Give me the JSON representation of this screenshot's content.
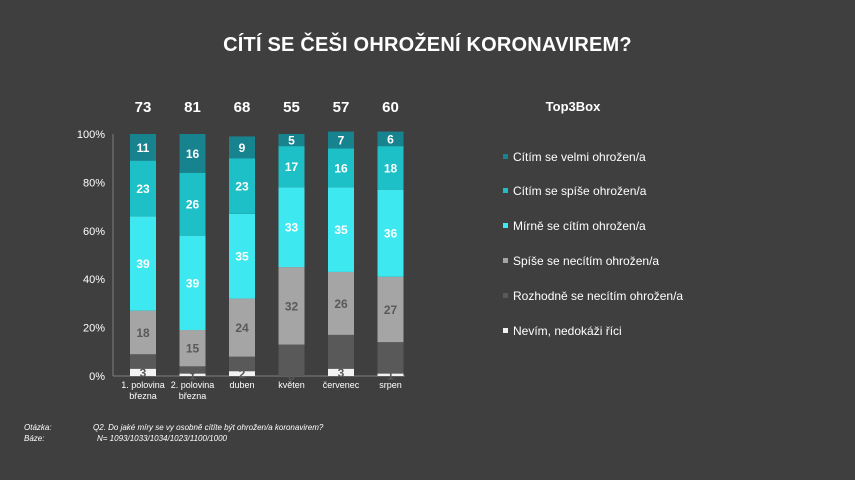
{
  "title": "CÍTÍ SE ČEŠI OHROŽENÍ KORONAVIREM?",
  "legend_title": "Top3Box",
  "colors": {
    "background": "#3f3f3f",
    "velmi": "#17838e",
    "spise": "#1cc0c6",
    "mirne": "#3ee8f0",
    "spise_ne": "#a5a5a5",
    "rozhodne_ne": "#595959",
    "nevim": "#f2f2f2"
  },
  "chart_data": {
    "type": "bar",
    "stacked": true,
    "categories": [
      "1. polovina března",
      "2. polovina března",
      "duben",
      "květen",
      "červenec",
      "srpen"
    ],
    "category_lines": [
      [
        "1. polovina",
        "března"
      ],
      [
        "2. polovina",
        "března"
      ],
      [
        "duben"
      ],
      [
        "květen"
      ],
      [
        "červenec"
      ],
      [
        "srpen"
      ]
    ],
    "top3box": [
      73,
      81,
      68,
      55,
      57,
      60
    ],
    "ylim": [
      0,
      100
    ],
    "yticks": [
      "0%",
      "20%",
      "40%",
      "60%",
      "80%",
      "100%"
    ],
    "series": [
      {
        "name": "Nevím, nedokáži říci",
        "color_key": "nevim",
        "label_color": "#595959",
        "values": [
          3,
          1,
          2,
          0,
          3,
          1
        ]
      },
      {
        "name": "Rozhodně se necítím ohrožen/a",
        "color_key": "rozhodne_ne",
        "label_color": "#595959",
        "values": [
          6,
          3,
          6,
          13,
          14,
          13
        ]
      },
      {
        "name": "Spíše se necítím ohrožen/a",
        "color_key": "spise_ne",
        "label_color": "#595959",
        "values": [
          18,
          15,
          24,
          32,
          26,
          27
        ]
      },
      {
        "name": "Mírně se cítím ohrožen/a",
        "color_key": "mirne",
        "label_color": "#ffffff",
        "values": [
          39,
          39,
          35,
          33,
          35,
          36
        ]
      },
      {
        "name": "Cítím se spíše ohrožen/a",
        "color_key": "spise",
        "label_color": "#ffffff",
        "values": [
          23,
          26,
          23,
          17,
          16,
          18
        ]
      },
      {
        "name": "Cítím se velmi ohrožen/a",
        "color_key": "velmi",
        "label_color": "#ffffff",
        "values": [
          11,
          16,
          9,
          5,
          7,
          6
        ]
      }
    ],
    "legend_order": [
      {
        "name": "Cítím se velmi ohrožen/a",
        "color_key": "velmi"
      },
      {
        "name": "Cítím se spíše ohrožen/a",
        "color_key": "spise"
      },
      {
        "name": "Mírně se cítím ohrožen/a",
        "color_key": "mirne"
      },
      {
        "name": "Spíše se necítím ohrožen/a",
        "color_key": "spise_ne"
      },
      {
        "name": "Rozhodně se necítím ohrožen/a",
        "color_key": "rozhodne_ne"
      },
      {
        "name": "Nevím, nedokáži říci",
        "color_key": "nevim"
      }
    ]
  },
  "footer": {
    "question_label": "Otázka:",
    "question_text": "Q2. Do jaké míry se vy osobně cítíte být ohrožen/a koronavirem?",
    "base_label": "Báze:",
    "base_text": "N= 1093/1033/1034/1023/1100/1000"
  }
}
